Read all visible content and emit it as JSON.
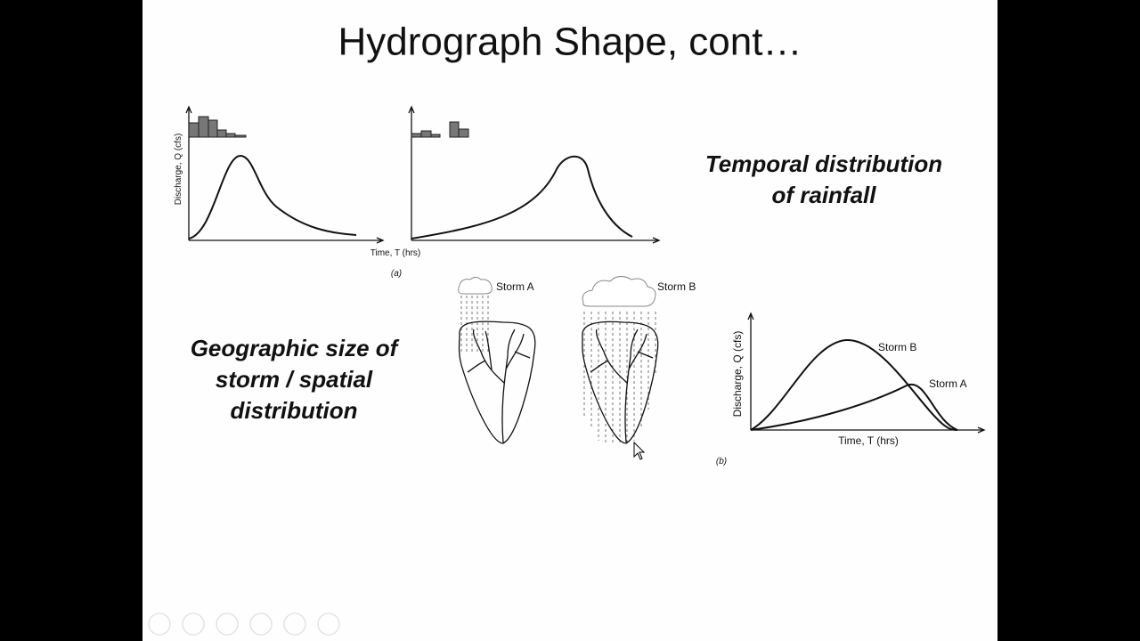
{
  "slide": {
    "title": "Hydrograph Shape, cont…",
    "figure_a": {
      "y_axis_label": "Discharge, Q (cfs)",
      "x_axis_label": "Time, T (hrs)",
      "caption": "(a)"
    },
    "temporal_note": [
      "Temporal distribution",
      "of rainfall"
    ],
    "spatial_note": [
      "Geographic size of",
      "storm / spatial",
      "distribution"
    ],
    "figure_b": {
      "cloud_labels": [
        "Storm A",
        "Storm B"
      ],
      "curve_labels": [
        "Storm B",
        "Storm A"
      ],
      "y_axis_label": "Discharge, Q (cfs)",
      "x_axis_label": "Time, T (hrs)",
      "caption": "(b)"
    }
  }
}
